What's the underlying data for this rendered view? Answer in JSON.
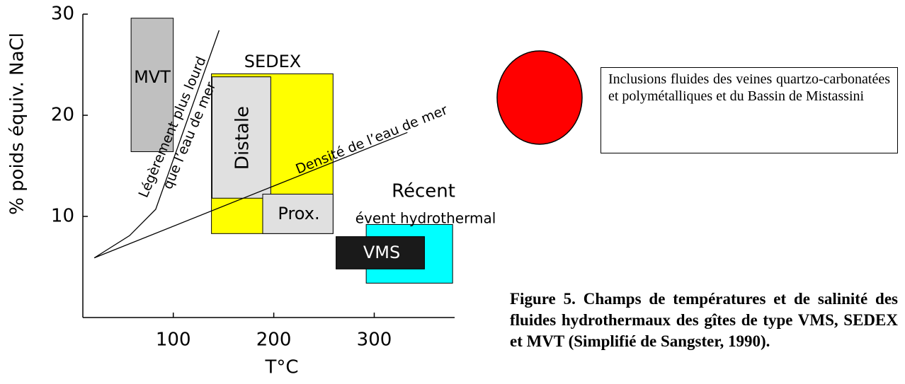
{
  "chart_data": {
    "type": "region",
    "xlabel": "T°C",
    "ylabel": "% poids équiv. NaCl",
    "xlim": [
      10,
      380
    ],
    "xticks": [
      100,
      200,
      300
    ],
    "ylim": [
      0,
      30
    ],
    "yticks": [
      10,
      20,
      30
    ],
    "regions": [
      {
        "name": "SEDEX",
        "color": "#ffff00",
        "x": [
          138,
          259
        ],
        "y": [
          8.3,
          24.1
        ]
      },
      {
        "name": "Distale",
        "color": "#e0e0e0",
        "x": [
          138.6,
          197
        ],
        "y": [
          11.8,
          23.8
        ]
      },
      {
        "name": "Prox.",
        "color": "#e0e0e0",
        "x": [
          189,
          259
        ],
        "y": [
          8.3,
          12.2
        ]
      },
      {
        "name": "Récent",
        "color": "#00ffff",
        "x": [
          292,
          378
        ],
        "y": [
          3.4,
          9.2
        ]
      },
      {
        "name": "VMS",
        "color": "#1a1a1a",
        "x": [
          262,
          350
        ],
        "y": [
          4.8,
          8.0
        ]
      },
      {
        "name": "MVT",
        "color": "#c0c0c0",
        "x": [
          58,
          100
        ],
        "y": [
          16.4,
          29.6
        ]
      }
    ],
    "lines": [
      {
        "label": [
          "Légèrement plus lourd",
          "que l’eau de mer"
        ],
        "x": [
          21.4,
          56.5,
          82.5,
          145.6
        ],
        "y": [
          5.9,
          8.1,
          10.7,
          28.4
        ]
      },
      {
        "label": [
          "Densité de l’eau de mer"
        ],
        "x": [
          21.4,
          333
        ],
        "y": [
          5.9,
          18.3
        ]
      }
    ],
    "annotation": "évent hydrothermal"
  },
  "legend_box": "Inclusions fluides des veines quartzo-carbonatées et polymétalliques et du Bassin de Mistassini",
  "caption": "Figure 5. Champs de températures et de salinité des fluides hydrothermaux des gîtes de type VMS, SEDEX et MVT (Simplifié de Sangster, 1990)."
}
